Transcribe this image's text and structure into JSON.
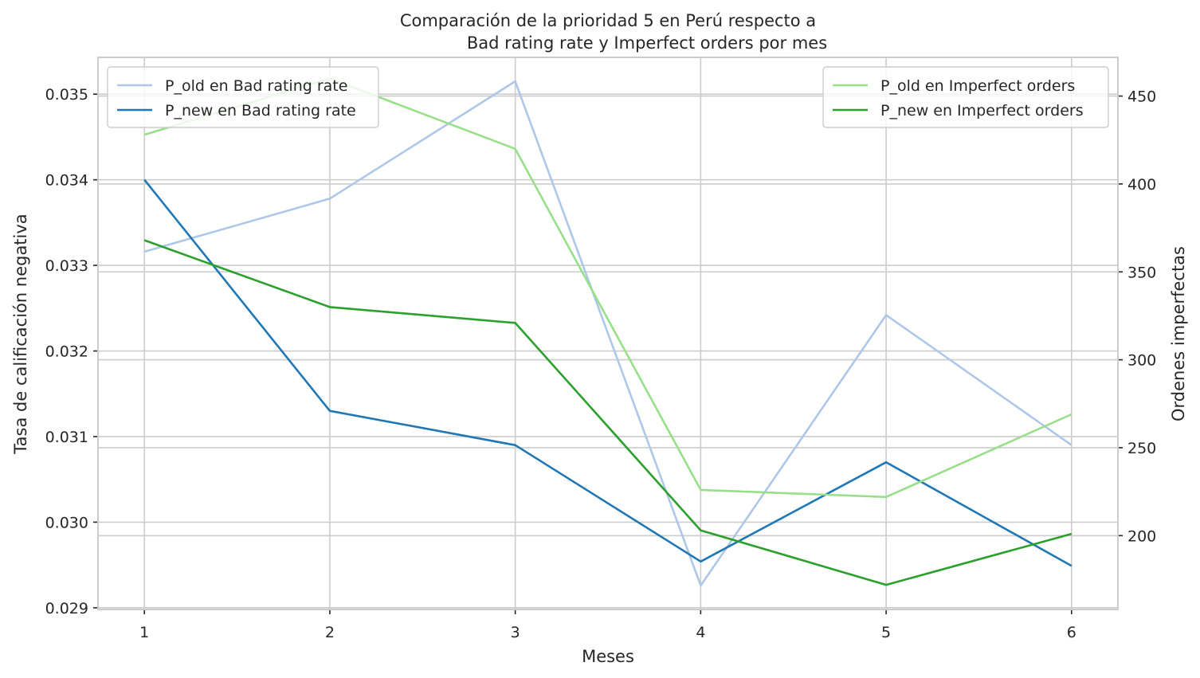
{
  "chart_data": {
    "type": "line",
    "title_line1": "Comparación de la prioridad 5 en Perú respecto a",
    "title_line2": "Bad rating rate y Imperfect orders por mes",
    "xlabel": "Meses",
    "ylabel_left": "Tasa de calificación negativa",
    "ylabel_right": "Ordenes imperfectas",
    "x": [
      1,
      2,
      3,
      4,
      5,
      6
    ],
    "x_tick_labels": [
      "1",
      "2",
      "3",
      "4",
      "5",
      "6"
    ],
    "xlim": [
      0.75,
      6.25
    ],
    "ylim_left": [
      0.02898,
      0.03543
    ],
    "ylim_right": [
      158,
      472
    ],
    "left_ticks": [
      0.029,
      0.03,
      0.031,
      0.032,
      0.033,
      0.034,
      0.035
    ],
    "left_tick_labels": [
      "0.029",
      "0.030",
      "0.031",
      "0.032",
      "0.033",
      "0.034",
      "0.035"
    ],
    "right_ticks": [
      200,
      250,
      300,
      350,
      400,
      450
    ],
    "right_tick_labels": [
      "200",
      "250",
      "300",
      "350",
      "400",
      "450"
    ],
    "grid": true,
    "series_left": [
      {
        "name": "P_old en Bad rating rate",
        "color": "#aec7e8",
        "values": [
          0.03316,
          0.03378,
          0.03515,
          0.02926,
          0.03242,
          0.0309
        ]
      },
      {
        "name": "P_new en Bad rating rate",
        "color": "#1f77b4",
        "values": [
          0.034,
          0.0313,
          0.0309,
          0.02954,
          0.0307,
          0.02949
        ]
      }
    ],
    "series_right": [
      {
        "name": "P_old en Imperfect orders",
        "color": "#98df8a",
        "values": [
          428,
          460,
          420,
          226,
          222,
          269
        ]
      },
      {
        "name": "P_new en Imperfect orders",
        "color": "#2ca02c",
        "values": [
          368,
          330,
          321,
          203,
          172,
          201
        ]
      }
    ],
    "legend_left_position": "top-left",
    "legend_right_position": "top-right"
  }
}
